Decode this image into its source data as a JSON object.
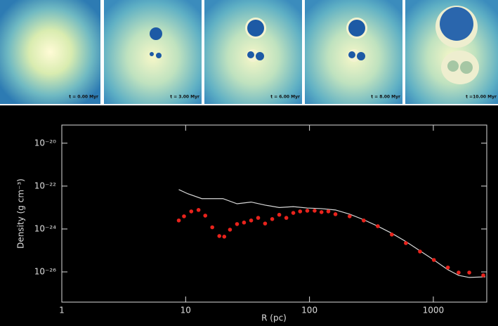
{
  "panels": [
    "t = 0.00 Myr",
    "t = 3.00 Myr",
    "t = 6.00 Myr",
    "t = 8.00 Myr",
    "t =10.00 Myr"
  ],
  "chart_data": {
    "type": "line",
    "xlabel": "R (pc)",
    "ylabel": "Density (g cm⁻³)",
    "xscale": "log",
    "yscale": "log",
    "xlim": [
      1,
      2700
    ],
    "ylim": [
      3.9e-28,
      7e-20
    ],
    "xticks": [
      1,
      10,
      100,
      1000
    ],
    "yticks": [
      {
        "value": 1e-20,
        "label": "10⁻²⁰"
      },
      {
        "value": 1e-22,
        "label": "10⁻²²"
      },
      {
        "value": 1e-24,
        "label": "10⁻²⁴"
      },
      {
        "value": 1e-26,
        "label": "10⁻²⁶"
      }
    ],
    "series": [
      {
        "style": "line",
        "color": "#d8d8d8",
        "x": [
          8.8,
          10.4,
          13.5,
          20,
          26,
          33.8,
          43.8,
          57,
          74,
          96,
          125,
          162,
          211,
          274,
          356,
          462,
          600,
          780,
          1010,
          1310,
          1600,
          1950,
          2630
        ],
        "values": [
          6.9e-23,
          4.4e-23,
          2.6e-23,
          2.6e-23,
          1.5e-23,
          1.8e-23,
          1.3e-23,
          1e-23,
          1.1e-23,
          9.5e-24,
          8.9e-24,
          7.7e-24,
          4.9e-24,
          2.7e-24,
          1.35e-24,
          6.3e-25,
          2.6e-25,
          9.6e-26,
          3.6e-26,
          1.26e-26,
          6.9e-27,
          5.5e-27,
          5.9e-27
        ]
      },
      {
        "style": "markers",
        "color": "#e8231c",
        "x": [
          8.8,
          9.7,
          11.1,
          12.7,
          14.4,
          16.4,
          18.7,
          20.5,
          22.8,
          26,
          29.6,
          33.8,
          38.5,
          43.8,
          50,
          57,
          65,
          74,
          84,
          96,
          110,
          125,
          142,
          162,
          211,
          274,
          356,
          462,
          600,
          780,
          1010,
          1310,
          1600,
          1950,
          2530
        ],
        "values": [
          2.5e-24,
          3.9e-24,
          6.6e-24,
          7.7e-24,
          4.2e-24,
          1.2e-24,
          4.7e-25,
          4.4e-25,
          9.3e-25,
          1.7e-24,
          2e-24,
          2.5e-24,
          3.3e-24,
          1.8e-24,
          2.9e-24,
          4.6e-24,
          3.3e-24,
          5.6e-24,
          6.6e-24,
          7.1e-24,
          7.1e-24,
          6.1e-24,
          6.6e-24,
          4.9e-24,
          3.9e-24,
          2.5e-24,
          1.35e-24,
          5.5e-25,
          2.2e-25,
          8.9e-26,
          3.6e-26,
          1.6e-26,
          9.3e-27,
          9.3e-27,
          6.9e-27
        ]
      }
    ]
  }
}
